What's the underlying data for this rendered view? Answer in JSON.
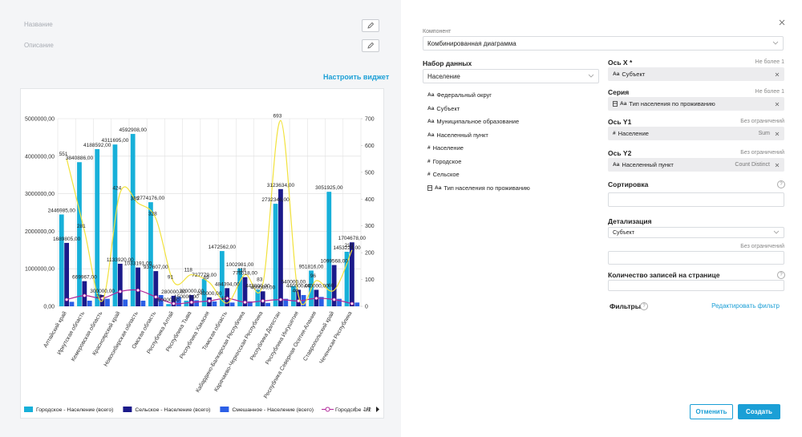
{
  "left": {
    "name_label": "Название",
    "description_label": "Описание",
    "configure_link": "Настроить виджет",
    "legend_page": "1/2"
  },
  "chart_data": {
    "type": "combo",
    "categories": [
      "Алтайский край",
      "Иркутская область",
      "Кемеровская область",
      "Красноярский край",
      "Новосибирская область",
      "Омская область",
      "Республика Алтай",
      "Республика Тыва",
      "Республика Хакасия",
      "Томская область",
      "Кабардино-Балкарская Республика",
      "Карачаево-Черкесская Республика",
      "Республика Дагестан",
      "Республика Ингушетия",
      "Республика Северная Осетия-Алания",
      "Ставропольский край",
      "Чеченская Республика"
    ],
    "ylim": [
      0,
      5000000
    ],
    "yticks": [
      {
        "value": 0,
        "label": "0,00"
      },
      {
        "value": 1000000,
        "label": "1000000,00"
      },
      {
        "value": 2000000,
        "label": "2000000,00"
      },
      {
        "value": 3000000,
        "label": "3000000,00"
      },
      {
        "value": 4000000,
        "label": "4000000,00"
      },
      {
        "value": 5000000,
        "label": "5000000,00"
      }
    ],
    "y2lim": [
      0,
      700
    ],
    "y2ticks": [
      0,
      100,
      200,
      300,
      400,
      500,
      600,
      700
    ],
    "grid": true,
    "series": [
      {
        "name": "Городское - Население (всего)",
        "color": "#17b0d9",
        "type": "bar",
        "values": [
          2446985,
          3840886,
          4188592,
          4311695,
          4592908,
          2774176,
          60000,
          150000,
          727779,
          1472562,
          1002981,
          443000,
          2732346,
          540000,
          951816,
          3051925,
          1453224
        ],
        "value_labels": [
          "2446985,00",
          "3840886,00",
          "4188592,00",
          "4311695,00",
          "4592908,00",
          "2774176,00",
          "60000,00",
          "150000,00",
          "727779,00",
          "1472562,00",
          "1002981,00",
          "443000,00",
          "2732346,00",
          "540000,00",
          "951816,00",
          "3051925,00",
          "1453224,00"
        ]
      },
      {
        "name": "Сельское - Население (всего)",
        "color": "#1b1a8a",
        "type": "bar",
        "values": [
          1689805,
          669967,
          300000,
          1133920,
          1033191,
          937607,
          280000,
          300000,
          240000,
          484394,
          776518,
          400000,
          3123634,
          440000,
          440000,
          1099568,
          1704678
        ],
        "value_labels": [
          "1689805,00",
          "669967,00",
          "300000,00",
          "1133920,00",
          "1033191,00",
          "937607,00",
          "280000,00",
          "300000,00",
          "240000,00",
          "484394,00",
          "776518,00",
          "400000,00",
          "3123634,00",
          "440000,00",
          "440000,00",
          "1099568,00",
          "1704678,00"
        ]
      },
      {
        "name": "Смешанное - Население (всего)",
        "color": "#2b5fe6",
        "type": "bar",
        "values": [
          120000,
          150000,
          200000,
          180000,
          150000,
          300000,
          250000,
          160000,
          130000,
          100000,
          130000,
          90000,
          200000,
          300000,
          250000,
          200000,
          100000
        ]
      },
      {
        "name": "Городское - Н",
        "color": "#b0279a",
        "type": "line",
        "axis": "y2",
        "markers": true,
        "values": [
          25,
          40,
          30,
          55,
          60,
          35,
          10,
          15,
          20,
          30,
          15,
          20,
          25,
          20,
          30,
          25,
          10
        ]
      },
      {
        "color": "#f2e23c",
        "type": "line",
        "axis": "y2",
        "data_labels": true,
        "values": [
          551,
          281,
          20,
          424,
          385,
          328,
          91,
          118,
          89,
          12,
          118,
          83,
          693,
          40,
          96,
          60,
          210
        ]
      }
    ]
  },
  "panel": {
    "component_label": "Компонент",
    "component_value": "Комбинированная диаграмма",
    "dataset_label": "Набор данных",
    "dataset_value": "Население",
    "fields": [
      {
        "icon": "Aa",
        "name": "Федеральный округ"
      },
      {
        "icon": "Aa",
        "name": "Субъект"
      },
      {
        "icon": "Aa",
        "name": "Муниципальное образование"
      },
      {
        "icon": "Aa",
        "name": "Населенный пункт"
      },
      {
        "icon": "#",
        "name": "Население"
      },
      {
        "icon": "#",
        "name": "Городское"
      },
      {
        "icon": "#",
        "name": "Сельское"
      },
      {
        "icon": "Aa",
        "name": "Тип населения по проживанию"
      }
    ],
    "axes": [
      {
        "label": "Ось X *",
        "limit": "Не более 1",
        "icon": "Aa",
        "value": "Субъект"
      },
      {
        "label": "Серия",
        "limit": "Не более 1",
        "icon": "Aa",
        "value": "Тип населения по проживанию"
      },
      {
        "label": "Ось Y1",
        "limit": "Без ограничений",
        "icon": "#",
        "value": "Население",
        "agg": "Sum"
      },
      {
        "label": "Ось Y2",
        "limit": "Без ограничений",
        "icon": "Aa",
        "value": "Населенный пункт",
        "agg": "Count Distinct"
      }
    ],
    "sort_label": "Сортировка",
    "help": "?",
    "detail_label": "Детализация",
    "detail_value": "Субъект",
    "detail_limit": "Без ограничений",
    "records_label": "Количество записей на странице",
    "filters_label": "Фильтры",
    "edit_filter": "Редактировать фильтр",
    "cancel": "Отменить",
    "create": "Создать"
  }
}
